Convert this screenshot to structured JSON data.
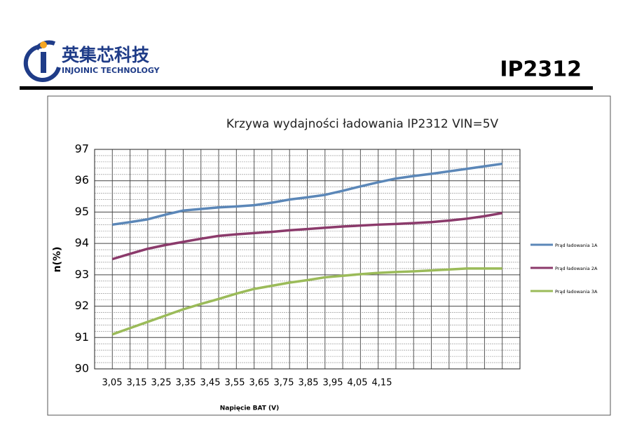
{
  "header": {
    "brand_cn": "英集芯科技",
    "brand_en": "INJOINIC TECHNOLOGY",
    "part": "IP2312"
  },
  "chart_data": {
    "type": "line",
    "title": "Krzywa wydajności ładowania IP2312 VIN=5V",
    "x_label": "Napięcie BAT (V)",
    "y_label": "n(%)",
    "categories": [
      "3,05",
      "3,15",
      "3,25",
      "3,35",
      "3,45",
      "3,55",
      "3,65",
      "3,75",
      "3,85",
      "3,95",
      "4,05",
      "4,15",
      null,
      null,
      null,
      null,
      null,
      null,
      null,
      null,
      null,
      null,
      null
    ],
    "ylim": [
      90,
      97
    ],
    "yticks": [
      90,
      91,
      92,
      93,
      94,
      95,
      96,
      97
    ],
    "grid": true,
    "legend": "right",
    "series": [
      {
        "name": "Prąd ładowania 1A",
        "color": "#5b87b8",
        "values": [
          94.6,
          94.68,
          94.77,
          94.92,
          95.05,
          95.1,
          95.15,
          95.18,
          95.22,
          95.3,
          95.4,
          95.47,
          95.55,
          95.68,
          95.82,
          95.95,
          96.07,
          96.15,
          96.22,
          96.3,
          96.38,
          96.46,
          96.54
        ]
      },
      {
        "name": "Prąd ładowania 2A",
        "color": "#8b3a6b",
        "values": [
          93.5,
          93.67,
          93.83,
          93.95,
          94.05,
          94.15,
          94.24,
          94.29,
          94.33,
          94.37,
          94.42,
          94.46,
          94.5,
          94.54,
          94.57,
          94.6,
          94.62,
          94.65,
          94.68,
          94.73,
          94.79,
          94.87,
          94.97
        ]
      },
      {
        "name": "Prąd ładowania 3A",
        "color": "#9bbb59",
        "values": [
          91.1,
          91.3,
          91.5,
          91.7,
          91.9,
          92.07,
          92.23,
          92.4,
          92.55,
          92.65,
          92.75,
          92.83,
          92.92,
          92.97,
          93.02,
          93.06,
          93.09,
          93.11,
          93.14,
          93.17,
          93.2,
          93.2,
          93.2
        ]
      }
    ]
  }
}
